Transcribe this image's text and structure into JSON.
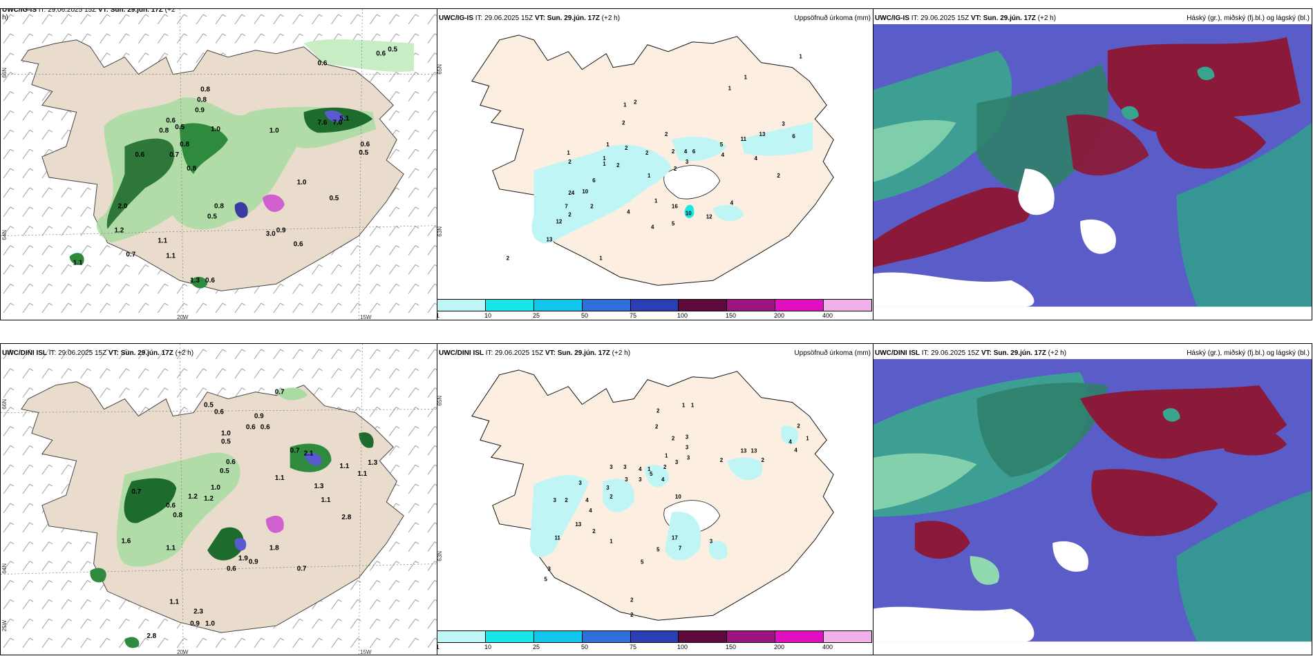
{
  "panels": {
    "top_left": {
      "model": "UWC/IG-IS",
      "it_label": "IT:",
      "it_value": "29.06.2025 15Z",
      "vt_label": "VT:",
      "vt_value": "Sun. 29.jún. 17Z",
      "lead": "(+2",
      "lead_cont": "h)"
    },
    "top_mid": {
      "model": "UWC/IG-IS",
      "it_label": "IT:",
      "it_value": "29.06.2025 15Z",
      "vt_label": "VT:",
      "vt_value": "Sun. 29.jún. 17Z",
      "lead": "(+2 h)",
      "right_title": "Uppsöfnuð úrkoma (mm)"
    },
    "top_right": {
      "model": "UWC/IG-IS",
      "it_label": "IT:",
      "it_value": "29.06.2025 15Z",
      "vt_label": "VT:",
      "vt_value": "Sun. 29.jún. 17Z",
      "lead": "(+2 h)",
      "right_title": "Háský (gr.), miðský (fj.bl.) og lágský (bl.)"
    },
    "bottom_left": {
      "model": "UWC/DINI ISL",
      "it_label": "IT:",
      "it_value": "29.06.2025 15Z",
      "vt_label": "VT:",
      "vt_value": "Sun. 29.jún. 17Z",
      "lead": "(+2 h)"
    },
    "bottom_mid": {
      "model": "UWC/DINI ISL",
      "it_label": "IT:",
      "it_value": "29.06.2025 15Z",
      "vt_label": "VT:",
      "vt_value": "Sun. 29.jún. 17Z",
      "lead": "(+2 h)",
      "right_title": "Uppsöfnuð úrkoma (mm)"
    },
    "bottom_right": {
      "model": "UWC/DINI ISL",
      "it_label": "IT:",
      "it_value": "29.06.2025 15Z",
      "vt_label": "VT:",
      "vt_value": "Sun. 29.jún. 17Z",
      "lead": "(+2 h)",
      "right_title": "Háský (gr.), miðský (fj.bl.) og lágský (bl.)"
    }
  },
  "axis_labels": {
    "lat_66": "66N",
    "lat_64": "64N",
    "lat_65": "65N",
    "lat_63": "63N",
    "lon_20": "20W",
    "lon_15": "15W",
    "lon_25": "25W"
  },
  "colorbar": {
    "ticks": [
      "1",
      "10",
      "25",
      "50",
      "75",
      "100",
      "150",
      "200",
      "400"
    ],
    "colors": [
      "#bff5f5",
      "#19e6e6",
      "#12c6ee",
      "#2e6fdc",
      "#2a3fb4",
      "#5e0a3c",
      "#9c1480",
      "#e010c0",
      "#f2b0ea"
    ]
  },
  "precip_top": [
    "1",
    "1",
    "1",
    "1",
    "2",
    "2",
    "2",
    "1",
    "1",
    "2",
    "2",
    "2",
    "4",
    "2",
    "6",
    "3",
    "1",
    "2",
    "5",
    "4",
    "10",
    "6",
    "1",
    "2",
    "1",
    "11",
    "13",
    "3",
    "6",
    "4",
    "2",
    "24",
    "2",
    "4",
    "12",
    "7",
    "2",
    "4",
    "1",
    "5",
    "13",
    "16",
    "10",
    "4",
    "12",
    "1",
    "2"
  ],
  "precip_bottom": [
    "1",
    "1",
    "2",
    "2",
    "2",
    "3",
    "3",
    "3",
    "1",
    "3",
    "2",
    "13",
    "13",
    "2",
    "4",
    "1",
    "4",
    "2",
    "2",
    "3",
    "3",
    "4",
    "3",
    "3",
    "4",
    "5",
    "3",
    "3",
    "1",
    "10",
    "2",
    "4",
    "4",
    "3",
    "2",
    "13",
    "11",
    "2",
    "1",
    "5",
    "7",
    "17",
    "3",
    "3",
    "5",
    "5",
    "2",
    "2"
  ],
  "wind_top": [
    "0.6",
    "0.5",
    "0.6",
    "0.8",
    "0.8",
    "0.9",
    "0.9",
    "0.6",
    "0.6",
    "0.8",
    "0.5",
    "0.8",
    "0.8",
    "1.0",
    "0.7",
    "0.6",
    "1.1",
    "1.0",
    "0.8",
    "0.5",
    "0.9",
    "2.0",
    "1.2",
    "1.3",
    "7.6",
    "7.0",
    "5.1",
    "3.2",
    "0.6",
    "0.5",
    "1.0",
    "1.1",
    "0.8",
    "0.5",
    "1.2",
    "3.0",
    "0.9",
    "0.6",
    "1.1",
    "0.7",
    "1.1",
    "1.3",
    "0.6"
  ],
  "wind_bottom": [
    "0.7",
    "0.5",
    "0.6",
    "0.9",
    "0.6",
    "0.6",
    "1.0",
    "0.5",
    "0.7",
    "2.1",
    "1.1",
    "1.3",
    "1.1",
    "0.7",
    "0.6",
    "0.8",
    "1.2",
    "1.2",
    "1.0",
    "1.1",
    "0.6",
    "0.5",
    "1.3",
    "1.1",
    "1.1",
    "2.8",
    "1.6",
    "1.1",
    "0.9",
    "1.0",
    "2.3",
    "0.6",
    "0.7",
    "1.9",
    "0.9",
    "1.8",
    "2.8"
  ]
}
